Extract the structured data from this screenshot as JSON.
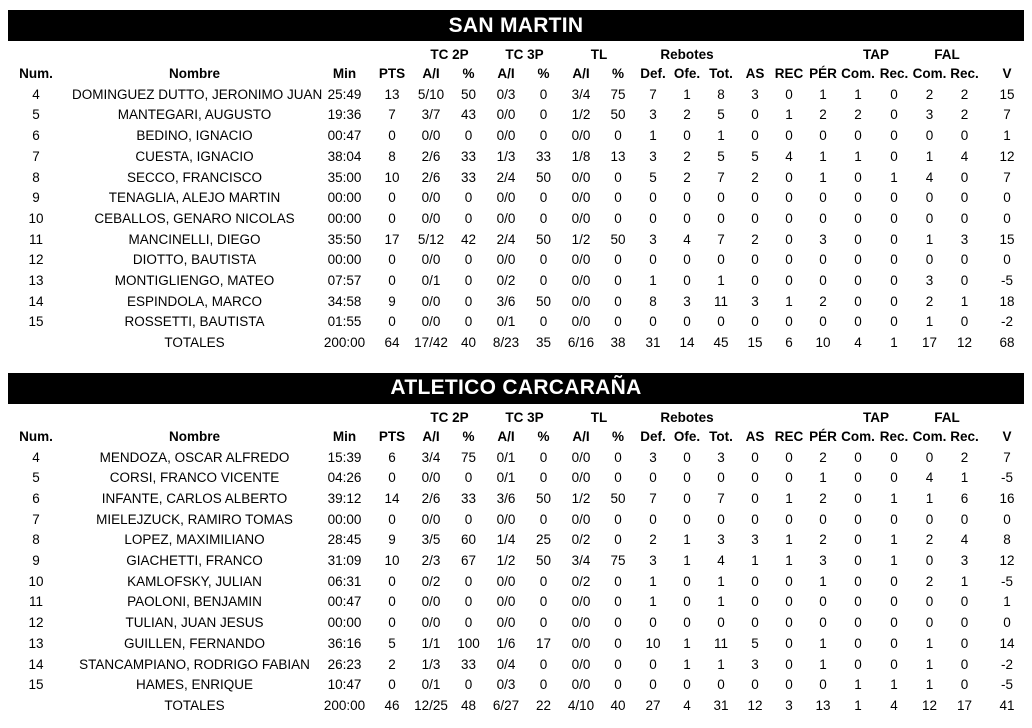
{
  "colors": {
    "team_bar_background": "#000000",
    "team_bar_text": "#ffffff",
    "table_text": "#000000",
    "page_background": "#ffffff"
  },
  "header_labels": {
    "num": "Num.",
    "nombre": "Nombre",
    "min": "Min",
    "pts": "PTS",
    "ai": "A/I",
    "pct": "%",
    "tc2p": "TC 2P",
    "tc3p": "TC 3P",
    "tl": "TL",
    "rebotes": "Rebotes",
    "tap": "TAP",
    "fal": "FAL",
    "def": "Def.",
    "ofe": "Ofe.",
    "tot": "Tot.",
    "as": "AS",
    "rec": "REC",
    "per": "PÉR",
    "com": "Com.",
    "rec_small": "Rec.",
    "v": "V"
  },
  "totals_label": "TOTALES",
  "teams": [
    {
      "name": "SAN MARTIN",
      "players": [
        [
          "4",
          "DOMINGUEZ DUTTO, JERONIMO JUAN",
          "25:49",
          "13",
          "5/10",
          "50",
          "0/3",
          "0",
          "3/4",
          "75",
          "7",
          "1",
          "8",
          "3",
          "0",
          "1",
          "1",
          "0",
          "2",
          "2",
          "15"
        ],
        [
          "5",
          "MANTEGARI, AUGUSTO",
          "19:36",
          "7",
          "3/7",
          "43",
          "0/0",
          "0",
          "1/2",
          "50",
          "3",
          "2",
          "5",
          "0",
          "1",
          "2",
          "2",
          "0",
          "3",
          "2",
          "7"
        ],
        [
          "6",
          "BEDINO, IGNACIO",
          "00:47",
          "0",
          "0/0",
          "0",
          "0/0",
          "0",
          "0/0",
          "0",
          "1",
          "0",
          "1",
          "0",
          "0",
          "0",
          "0",
          "0",
          "0",
          "0",
          "1"
        ],
        [
          "7",
          "CUESTA, IGNACIO",
          "38:04",
          "8",
          "2/6",
          "33",
          "1/3",
          "33",
          "1/8",
          "13",
          "3",
          "2",
          "5",
          "5",
          "4",
          "1",
          "1",
          "0",
          "1",
          "4",
          "12"
        ],
        [
          "8",
          "SECCO, FRANCISCO",
          "35:00",
          "10",
          "2/6",
          "33",
          "2/4",
          "50",
          "0/0",
          "0",
          "5",
          "2",
          "7",
          "2",
          "0",
          "1",
          "0",
          "1",
          "4",
          "0",
          "7"
        ],
        [
          "9",
          "TENAGLIA, ALEJO MARTIN",
          "00:00",
          "0",
          "0/0",
          "0",
          "0/0",
          "0",
          "0/0",
          "0",
          "0",
          "0",
          "0",
          "0",
          "0",
          "0",
          "0",
          "0",
          "0",
          "0",
          "0"
        ],
        [
          "10",
          "CEBALLOS, GENARO NICOLAS",
          "00:00",
          "0",
          "0/0",
          "0",
          "0/0",
          "0",
          "0/0",
          "0",
          "0",
          "0",
          "0",
          "0",
          "0",
          "0",
          "0",
          "0",
          "0",
          "0",
          "0"
        ],
        [
          "11",
          "MANCINELLI, DIEGO",
          "35:50",
          "17",
          "5/12",
          "42",
          "2/4",
          "50",
          "1/2",
          "50",
          "3",
          "4",
          "7",
          "2",
          "0",
          "3",
          "0",
          "0",
          "1",
          "3",
          "15"
        ],
        [
          "12",
          "DIOTTO, BAUTISTA",
          "00:00",
          "0",
          "0/0",
          "0",
          "0/0",
          "0",
          "0/0",
          "0",
          "0",
          "0",
          "0",
          "0",
          "0",
          "0",
          "0",
          "0",
          "0",
          "0",
          "0"
        ],
        [
          "13",
          "MONTIGLIENGO, MATEO",
          "07:57",
          "0",
          "0/1",
          "0",
          "0/2",
          "0",
          "0/0",
          "0",
          "1",
          "0",
          "1",
          "0",
          "0",
          "0",
          "0",
          "0",
          "3",
          "0",
          "-5"
        ],
        [
          "14",
          "ESPINDOLA, MARCO",
          "34:58",
          "9",
          "0/0",
          "0",
          "3/6",
          "50",
          "0/0",
          "0",
          "8",
          "3",
          "11",
          "3",
          "1",
          "2",
          "0",
          "0",
          "2",
          "1",
          "18"
        ],
        [
          "15",
          "ROSSETTI, BAUTISTA",
          "01:55",
          "0",
          "0/0",
          "0",
          "0/1",
          "0",
          "0/0",
          "0",
          "0",
          "0",
          "0",
          "0",
          "0",
          "0",
          "0",
          "0",
          "1",
          "0",
          "-2"
        ]
      ],
      "totals": [
        "200:00",
        "64",
        "17/42",
        "40",
        "8/23",
        "35",
        "6/16",
        "38",
        "31",
        "14",
        "45",
        "15",
        "6",
        "10",
        "4",
        "1",
        "17",
        "12",
        "68"
      ]
    },
    {
      "name": "ATLETICO CARCARAÑA",
      "players": [
        [
          "4",
          "MENDOZA, OSCAR ALFREDO",
          "15:39",
          "6",
          "3/4",
          "75",
          "0/1",
          "0",
          "0/0",
          "0",
          "3",
          "0",
          "3",
          "0",
          "0",
          "2",
          "0",
          "0",
          "0",
          "2",
          "7"
        ],
        [
          "5",
          "CORSI, FRANCO VICENTE",
          "04:26",
          "0",
          "0/0",
          "0",
          "0/1",
          "0",
          "0/0",
          "0",
          "0",
          "0",
          "0",
          "0",
          "0",
          "1",
          "0",
          "0",
          "4",
          "1",
          "-5"
        ],
        [
          "6",
          "INFANTE, CARLOS ALBERTO",
          "39:12",
          "14",
          "2/6",
          "33",
          "3/6",
          "50",
          "1/2",
          "50",
          "7",
          "0",
          "7",
          "0",
          "1",
          "2",
          "0",
          "1",
          "1",
          "6",
          "16"
        ],
        [
          "7",
          "MIELEJZUCK, RAMIRO TOMAS",
          "00:00",
          "0",
          "0/0",
          "0",
          "0/0",
          "0",
          "0/0",
          "0",
          "0",
          "0",
          "0",
          "0",
          "0",
          "0",
          "0",
          "0",
          "0",
          "0",
          "0"
        ],
        [
          "8",
          "LOPEZ, MAXIMILIANO",
          "28:45",
          "9",
          "3/5",
          "60",
          "1/4",
          "25",
          "0/2",
          "0",
          "2",
          "1",
          "3",
          "3",
          "1",
          "2",
          "0",
          "1",
          "2",
          "4",
          "8"
        ],
        [
          "9",
          "GIACHETTI, FRANCO",
          "31:09",
          "10",
          "2/3",
          "67",
          "1/2",
          "50",
          "3/4",
          "75",
          "3",
          "1",
          "4",
          "1",
          "1",
          "3",
          "0",
          "1",
          "0",
          "3",
          "12"
        ],
        [
          "10",
          "KAMLOFSKY, JULIAN",
          "06:31",
          "0",
          "0/2",
          "0",
          "0/0",
          "0",
          "0/2",
          "0",
          "1",
          "0",
          "1",
          "0",
          "0",
          "1",
          "0",
          "0",
          "2",
          "1",
          "-5"
        ],
        [
          "11",
          "PAOLONI, BENJAMIN",
          "00:47",
          "0",
          "0/0",
          "0",
          "0/0",
          "0",
          "0/0",
          "0",
          "1",
          "0",
          "1",
          "0",
          "0",
          "0",
          "0",
          "0",
          "0",
          "0",
          "1"
        ],
        [
          "12",
          "TULIAN, JUAN JESUS",
          "00:00",
          "0",
          "0/0",
          "0",
          "0/0",
          "0",
          "0/0",
          "0",
          "0",
          "0",
          "0",
          "0",
          "0",
          "0",
          "0",
          "0",
          "0",
          "0",
          "0"
        ],
        [
          "13",
          "GUILLEN, FERNANDO",
          "36:16",
          "5",
          "1/1",
          "100",
          "1/6",
          "17",
          "0/0",
          "0",
          "10",
          "1",
          "11",
          "5",
          "0",
          "1",
          "0",
          "0",
          "1",
          "0",
          "14"
        ],
        [
          "14",
          "STANCAMPIANO, RODRIGO FABIAN",
          "26:23",
          "2",
          "1/3",
          "33",
          "0/4",
          "0",
          "0/0",
          "0",
          "0",
          "1",
          "1",
          "3",
          "0",
          "1",
          "0",
          "0",
          "1",
          "0",
          "-2"
        ],
        [
          "15",
          "HAMES, ENRIQUE",
          "10:47",
          "0",
          "0/1",
          "0",
          "0/3",
          "0",
          "0/0",
          "0",
          "0",
          "0",
          "0",
          "0",
          "0",
          "0",
          "1",
          "1",
          "1",
          "0",
          "-5"
        ]
      ],
      "totals": [
        "200:00",
        "46",
        "12/25",
        "48",
        "6/27",
        "22",
        "4/10",
        "40",
        "27",
        "4",
        "31",
        "12",
        "3",
        "13",
        "1",
        "4",
        "12",
        "17",
        "41"
      ]
    }
  ]
}
